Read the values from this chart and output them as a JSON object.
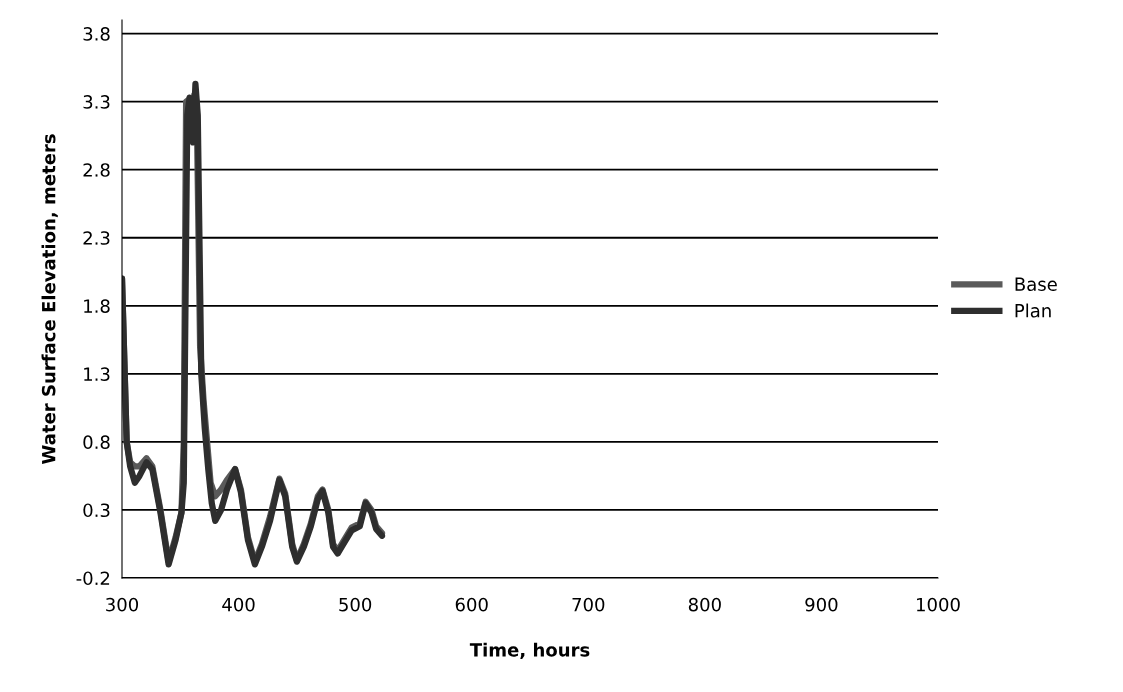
{
  "chart_data": {
    "type": "line",
    "xlabel": "Time, hours",
    "ylabel": "Water Surface Elevation, meters",
    "xlim": [
      300,
      1000
    ],
    "xticks": [
      300,
      400,
      500,
      600,
      700,
      800,
      900,
      1000
    ],
    "ylim": [
      -0.2,
      3.9
    ],
    "yticks": [
      -0.2,
      0.3,
      0.8,
      1.3,
      1.8,
      2.3,
      2.8,
      3.3,
      3.8
    ],
    "grid": "y",
    "legend": "right",
    "marker": "none",
    "line_style": "solid",
    "series": [
      {
        "name": "Base",
        "color": "#5a5a5a",
        "x": [
          300,
          302,
          304,
          307,
          311,
          315,
          321,
          326,
          333,
          340,
          346,
          351,
          353,
          355,
          358,
          360,
          362,
          364,
          367,
          370,
          373,
          376,
          380,
          385,
          390,
          397,
          402,
          408,
          414,
          420,
          427,
          435,
          440,
          446,
          450,
          456,
          462,
          468,
          472,
          477,
          481,
          485,
          490,
          497,
          504,
          509,
          514,
          518,
          523
        ],
        "values": [
          2.0,
          1.4,
          0.8,
          0.65,
          0.62,
          0.62,
          0.68,
          0.62,
          0.3,
          -0.08,
          0.1,
          0.28,
          0.8,
          3.3,
          3.32,
          3.2,
          3.35,
          3.3,
          1.5,
          1.1,
          0.8,
          0.5,
          0.4,
          0.45,
          0.52,
          0.6,
          0.45,
          0.1,
          -0.08,
          0.05,
          0.25,
          0.53,
          0.42,
          0.05,
          -0.07,
          0.05,
          0.2,
          0.4,
          0.45,
          0.3,
          0.05,
          0.0,
          0.07,
          0.17,
          0.2,
          0.36,
          0.3,
          0.18,
          0.13
        ]
      },
      {
        "name": "Plan",
        "color": "#2e2e2e",
        "x": [
          300,
          302,
          304,
          307,
          311,
          315,
          321,
          326,
          333,
          340,
          346,
          351,
          353,
          356,
          358,
          361,
          363,
          365,
          368,
          371,
          374,
          377,
          380,
          385,
          390,
          397,
          402,
          408,
          414,
          420,
          427,
          435,
          440,
          446,
          450,
          456,
          462,
          468,
          472,
          477,
          481,
          485,
          490,
          497,
          504,
          509,
          514,
          518,
          523
        ],
        "values": [
          2.0,
          1.4,
          0.8,
          0.62,
          0.5,
          0.55,
          0.65,
          0.6,
          0.28,
          -0.1,
          0.08,
          0.28,
          0.5,
          3.2,
          3.33,
          3.0,
          3.43,
          3.2,
          1.3,
          0.9,
          0.6,
          0.35,
          0.22,
          0.3,
          0.45,
          0.6,
          0.43,
          0.08,
          -0.1,
          0.03,
          0.22,
          0.52,
          0.4,
          0.03,
          -0.08,
          0.03,
          0.18,
          0.38,
          0.44,
          0.28,
          0.03,
          -0.02,
          0.05,
          0.15,
          0.18,
          0.35,
          0.28,
          0.16,
          0.11
        ]
      }
    ]
  }
}
